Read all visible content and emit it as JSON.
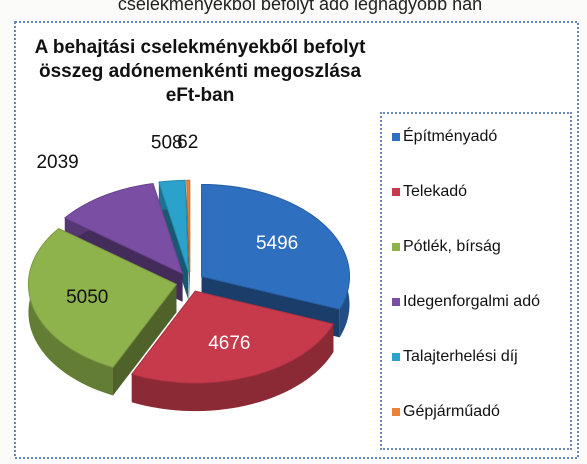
{
  "header_text": "cselekményekből befolyt adó legnagyobb hán",
  "chart_data": {
    "type": "pie3d",
    "title_lines": [
      "A behajtási cselekményekből befolyt",
      "összeg adónemenkénti megoszlása",
      "eFt-ban"
    ],
    "categories": [
      "Építményadó",
      "Telekadó",
      "Pótlék, bírság",
      "Idegenforgalmi adó",
      "Talajterhelési díj",
      "Gépjárműadó"
    ],
    "values": [
      5496,
      4676,
      5050,
      2039,
      508,
      62
    ],
    "colors": [
      "#2f6fc0",
      "#c63a4c",
      "#8fb34c",
      "#7a4ea3",
      "#2aa2cc",
      "#ea8238"
    ],
    "legend": "right"
  }
}
